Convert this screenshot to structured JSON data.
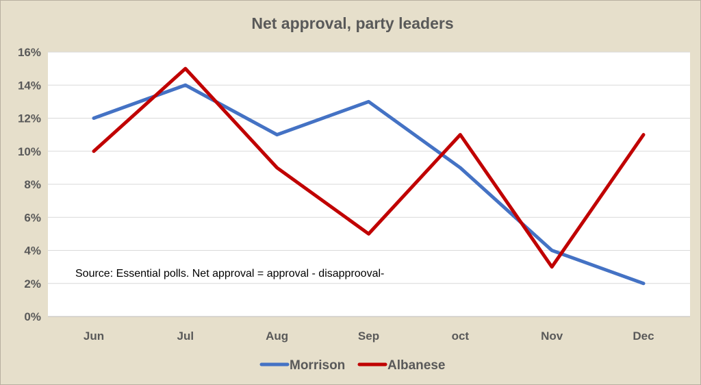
{
  "chart_data": {
    "type": "line",
    "title": "Net approval, party leaders",
    "categories": [
      "Jun",
      "Jul",
      "Aug",
      "Sep",
      "oct",
      "Nov",
      "Dec"
    ],
    "ylim": [
      0,
      16
    ],
    "yticks": [
      0,
      2,
      4,
      6,
      8,
      10,
      12,
      14,
      16
    ],
    "ytick_labels": [
      "0%",
      "2%",
      "4%",
      "6%",
      "8%",
      "10%",
      "12%",
      "14%",
      "16%"
    ],
    "grid": true,
    "legend_position": "bottom",
    "series": [
      {
        "name": "Morrison",
        "color": "#4472c4",
        "values": [
          12,
          14,
          11,
          13,
          9,
          4,
          2
        ]
      },
      {
        "name": "Albanese",
        "color": "#c00000",
        "values": [
          10,
          15,
          9,
          5,
          11,
          3,
          11
        ]
      }
    ],
    "annotation": "Source: Essential polls.  Net approval = approval - disapprooval-"
  }
}
